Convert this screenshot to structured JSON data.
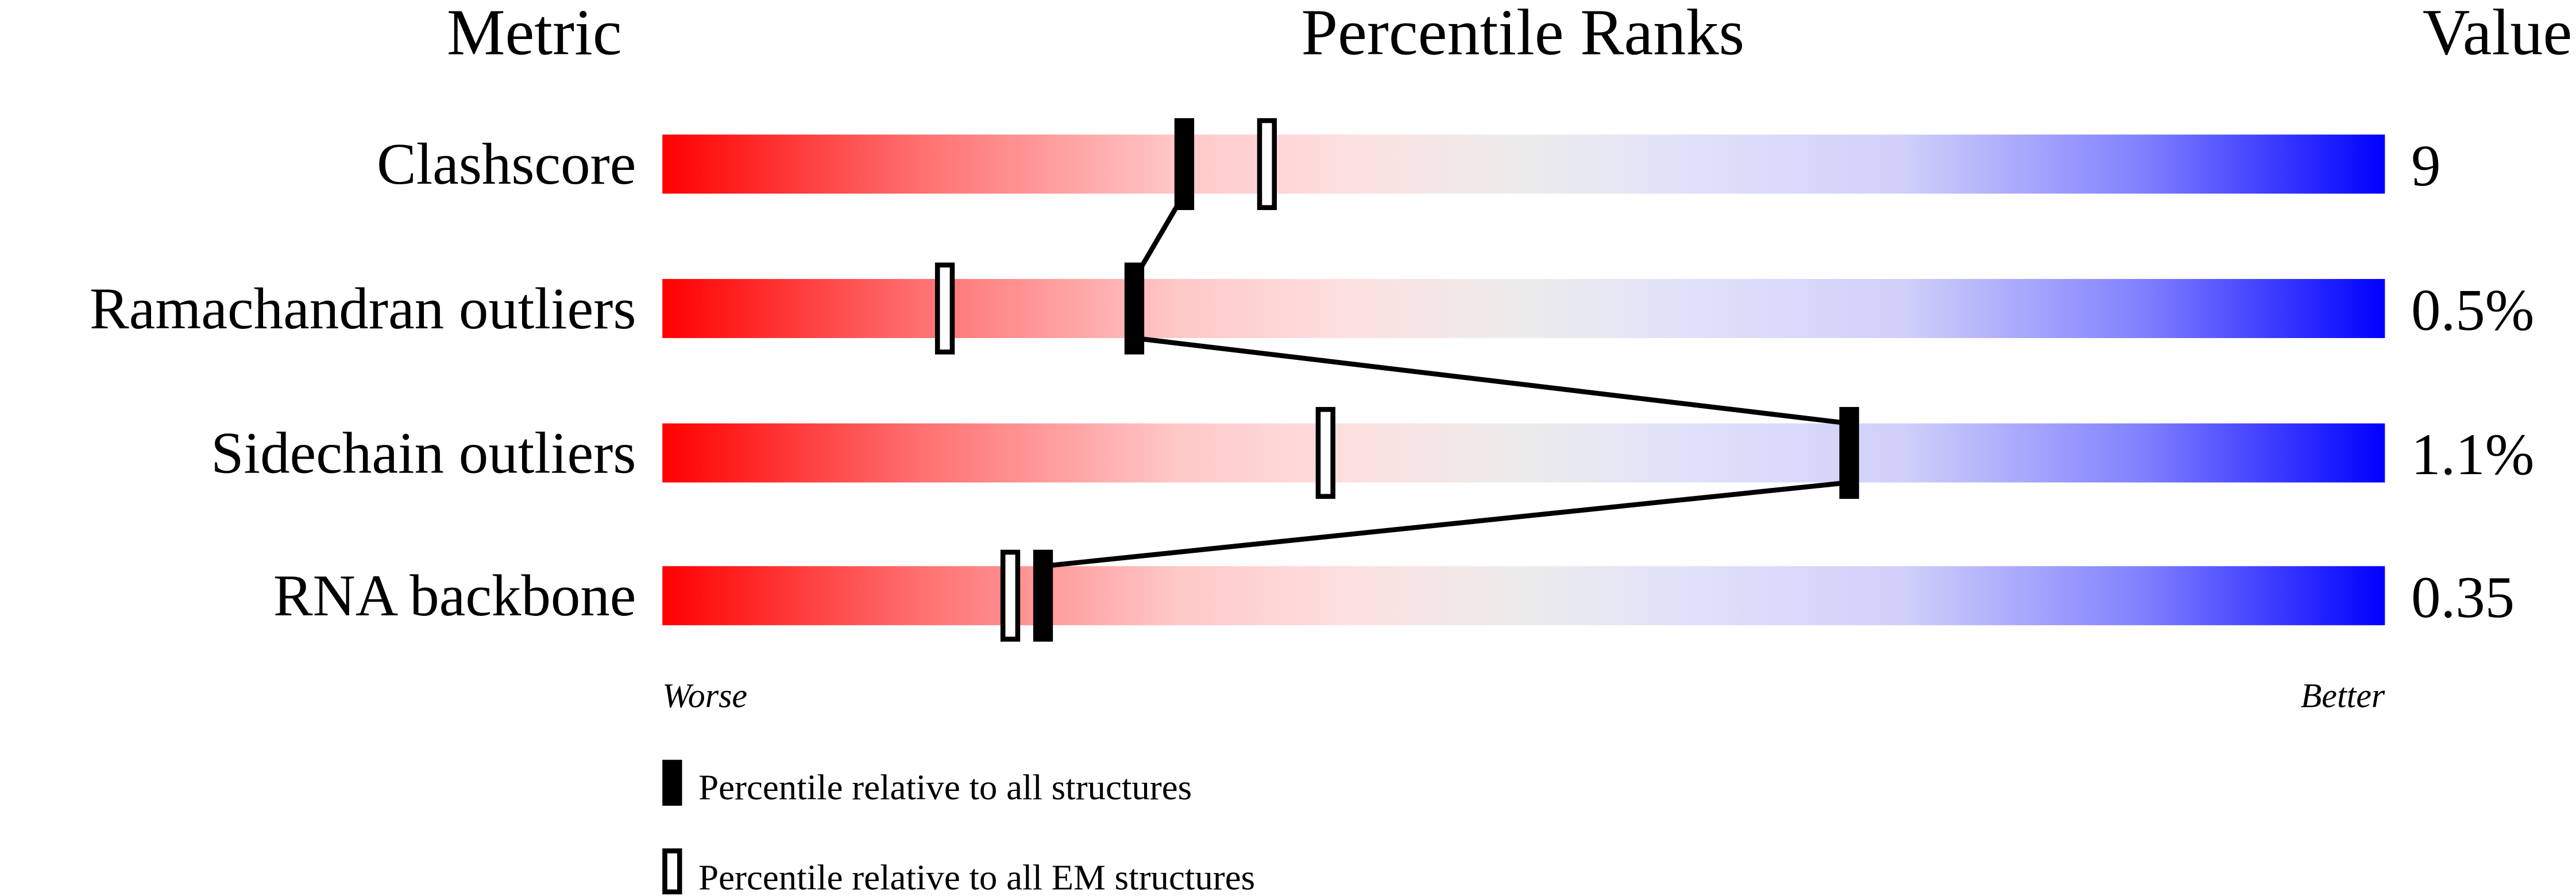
{
  "chart_data": {
    "type": "percentile-ranks",
    "headers": {
      "metric": "Metric",
      "ranks": "Percentile Ranks",
      "value": "Value"
    },
    "xlim": [
      0,
      100
    ],
    "axis_labels": {
      "left": "Worse",
      "right": "Better"
    },
    "rows": [
      {
        "metric": "Clashscore",
        "value": "9",
        "percentile_all": 30.3,
        "percentile_em": 35.1
      },
      {
        "metric": "Ramachandran outliers",
        "value": "0.5%",
        "percentile_all": 27.4,
        "percentile_em": 16.4
      },
      {
        "metric": "Sidechain outliers",
        "value": "1.1%",
        "percentile_all": 68.9,
        "percentile_em": 38.5
      },
      {
        "metric": "RNA backbone",
        "value": "0.35",
        "percentile_all": 22.1,
        "percentile_em": 20.2
      }
    ],
    "legend": {
      "filled": "Percentile relative to all structures",
      "open": "Percentile relative to all EM structures"
    },
    "colors": {
      "worse": "#ff0000",
      "middle": "#ececec",
      "better": "#0000ff",
      "marker": "#000000"
    }
  }
}
